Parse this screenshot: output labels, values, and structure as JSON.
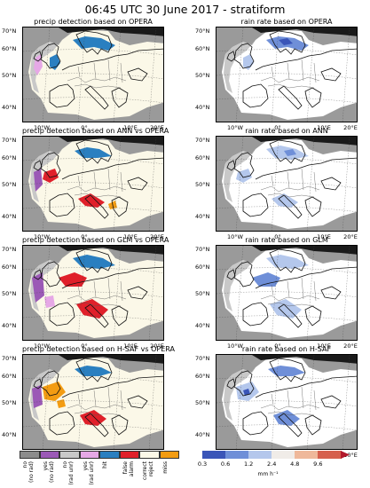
{
  "title": "06:45 UTC 30 June 2017 - stratiform",
  "panels": [
    {
      "title": "precip detection based on OPERA",
      "kind": "det",
      "src": "opera"
    },
    {
      "title": "rain rate based on OPERA",
      "kind": "rate",
      "src": "opera"
    },
    {
      "title": "precip detection based on ANN vs OPERA",
      "kind": "det",
      "src": "ann"
    },
    {
      "title": "rain rate based on ANN",
      "kind": "rate",
      "src": "ann"
    },
    {
      "title": "precip detection based on GLM vs OPERA",
      "kind": "det",
      "src": "glm"
    },
    {
      "title": "rain rate based on GLM",
      "kind": "rate",
      "src": "glm"
    },
    {
      "title": "precip detection based on H-SAF vs OPERA",
      "kind": "det",
      "src": "hsaf"
    },
    {
      "title": "rain rate based on H-SAF",
      "kind": "rate",
      "src": "hsaf"
    }
  ],
  "lat_labels": [
    "70°N",
    "60°N",
    "50°N",
    "40°N"
  ],
  "lon_labels": [
    "10°W",
    "0°",
    "10°E",
    "20°E"
  ],
  "detection_legend": [
    {
      "label": "no\n(no rad)",
      "color": "#8c8c8c"
    },
    {
      "label": "yes\n(no rad)",
      "color": "#9b59b6"
    },
    {
      "label": "no\n(rad unr)",
      "color": "#c8c8c8"
    },
    {
      "label": "yes\n(rad unr)",
      "color": "#e6a8e6"
    },
    {
      "label": "hit",
      "color": "#2a7fc0"
    },
    {
      "label": "false\nalarm",
      "color": "#e0202a"
    },
    {
      "label": "correct\nreject",
      "color": "#fbf8e8"
    },
    {
      "label": "miss",
      "color": "#f39c12"
    }
  ],
  "rate_legend": {
    "ticks": [
      "0.3",
      "0.6",
      "1.2",
      "2.4",
      "4.8",
      "9.6"
    ],
    "unit": "mm h⁻¹",
    "colors": [
      "#3a55b8",
      "#6f8fd8",
      "#b4c7ec",
      "#f0ece8",
      "#efb89a",
      "#d6604d",
      "#b2182b"
    ]
  },
  "colors": {
    "no_radar": "#9a9a9a",
    "unreliable": "#c8c8c8",
    "correct_reject": "#fbf8e8",
    "rate_background": "#ffffff",
    "hit": "#2a7fc0",
    "false_alarm": "#e0202a",
    "miss": "#f39c12",
    "yes_no_rad": "#9b59b6",
    "yes_rad_unr": "#e6a8e6"
  }
}
